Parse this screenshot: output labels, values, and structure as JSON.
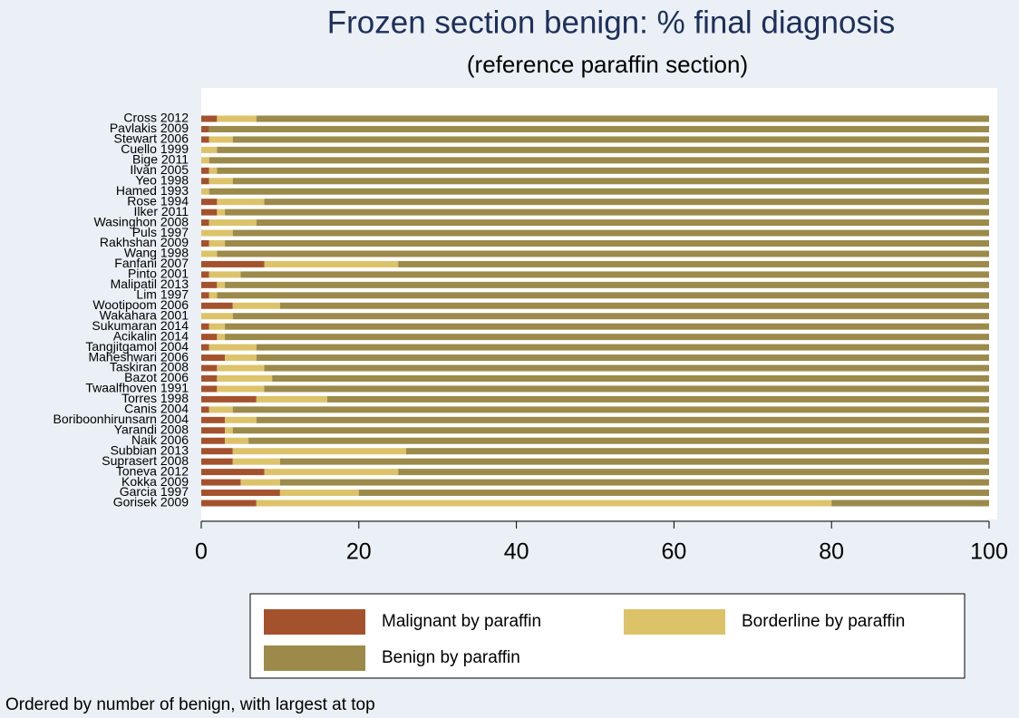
{
  "chart_data": {
    "type": "stacked_bar_horizontal",
    "title": "Frozen section benign: % final diagnosis",
    "subtitle": "(reference paraffin section)",
    "note": "Ordered by number of benign, with largest at top",
    "categories": [
      "Cross 2012",
      "Pavlakis 2009",
      "Stewart 2006",
      "Cuello 1999",
      "Bige 2011",
      "Ilvan 2005",
      "Yeo 1998",
      "Hamed 1993",
      "Rose 1994",
      "Ilker 2011",
      "Wasinghon 2008",
      "Puls 1997",
      "Rakhshan 2009",
      "Wang 1998",
      "Fanfani 2007",
      "Pinto 2001",
      "Malipatil 2013",
      "Lim 1997",
      "Wootipoom 2006",
      "Wakahara 2001",
      "Sukumaran 2014",
      "Acikalin 2014",
      "Tangjitgamol 2004",
      "Maheshwari 2006",
      "Taskiran 2008",
      "Bazot 2006",
      "Twaalfhoven 1991",
      "Torres 1998",
      "Canis 2004",
      "Boriboonhirunsarn 2004",
      "Yarandi 2008",
      "Naik 2006",
      "Subbian 2013",
      "Suprasert 2008",
      "Toneva 2012",
      "Kokka 2009",
      "Garcia 1997",
      "Gorisek 2009"
    ],
    "series": [
      {
        "name": "Malignant by paraffin",
        "color": "#a4522e",
        "values": [
          2,
          1,
          1,
          0,
          0,
          1,
          1,
          0,
          2,
          2,
          1,
          0,
          1,
          0,
          8,
          1,
          2,
          1,
          4,
          0,
          1,
          2,
          1,
          3,
          2,
          2,
          2,
          7,
          1,
          3,
          3,
          3,
          4,
          4,
          8,
          5,
          10,
          7
        ]
      },
      {
        "name": "Borderline by paraffin",
        "color": "#dcc36a",
        "values": [
          5,
          0,
          3,
          2,
          1,
          1,
          3,
          1,
          6,
          1,
          6,
          4,
          2,
          2,
          17,
          4,
          1,
          1,
          6,
          4,
          2,
          1,
          6,
          4,
          6,
          7,
          6,
          9,
          3,
          4,
          1,
          3,
          22,
          6,
          17,
          5,
          10,
          73
        ]
      },
      {
        "name": "Benign by paraffin",
        "color": "#9b8a4a",
        "values": [
          93,
          99,
          96,
          98,
          99,
          98,
          96,
          99,
          92,
          97,
          93,
          96,
          97,
          98,
          75,
          95,
          97,
          98,
          90,
          96,
          97,
          97,
          93,
          93,
          92,
          91,
          92,
          84,
          96,
          93,
          96,
          94,
          74,
          90,
          75,
          90,
          80,
          20
        ]
      }
    ],
    "xlim": [
      0,
      100
    ],
    "xticks": [
      0,
      20,
      40,
      60,
      80,
      100
    ],
    "legend": "bottom"
  }
}
